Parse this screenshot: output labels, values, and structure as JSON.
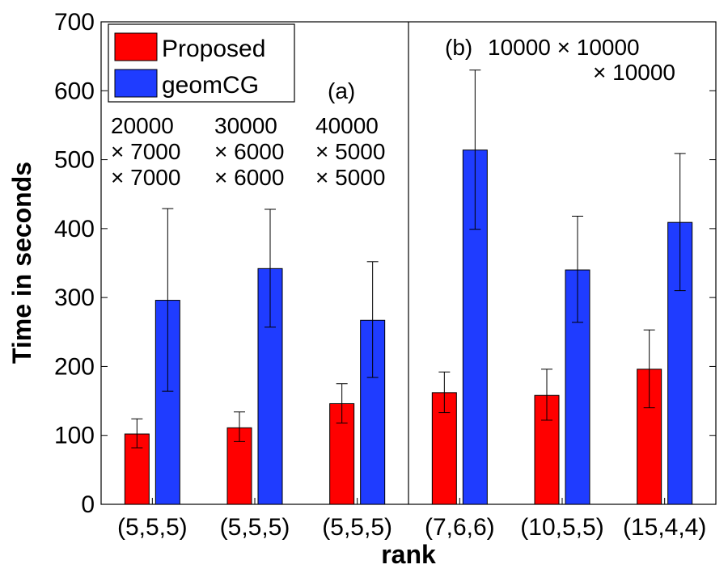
{
  "chart_data": {
    "type": "bar",
    "xlabel": "rank",
    "ylabel": "Time in seconds",
    "ylim": [
      0,
      700
    ],
    "yticks": [
      0,
      100,
      200,
      300,
      400,
      500,
      600,
      700
    ],
    "categories": [
      "(5,5,5)",
      "(5,5,5)",
      "(5,5,5)",
      "(7,6,6)",
      "(10,5,5)",
      "(15,4,4)"
    ],
    "series": [
      {
        "name": "Proposed",
        "color": "#ff0000",
        "values": [
          102,
          111,
          146,
          162,
          158,
          196
        ],
        "error_low": [
          82,
          91,
          118,
          133,
          122,
          140
        ],
        "error_high": [
          124,
          134,
          175,
          192,
          196,
          253
        ]
      },
      {
        "name": "geomCG",
        "color": "#1f3cff",
        "values": [
          296,
          342,
          267,
          514,
          340,
          409
        ],
        "error_low": [
          164,
          257,
          184,
          399,
          264,
          310
        ],
        "error_high": [
          429,
          428,
          352,
          630,
          418,
          509
        ]
      }
    ],
    "legend_position": "top-left",
    "grid": false,
    "panels": [
      {
        "label": "(a)",
        "categories_index": [
          0,
          1,
          2
        ],
        "sizes": [
          [
            "20000",
            "× 7000",
            "× 7000"
          ],
          [
            "30000",
            "× 6000",
            "× 6000"
          ],
          [
            "40000",
            "× 5000",
            "× 5000"
          ]
        ]
      },
      {
        "label": "(b)",
        "categories_index": [
          3,
          4,
          5
        ],
        "size_lines": [
          "10000 × 10000",
          "× 10000"
        ]
      }
    ]
  }
}
